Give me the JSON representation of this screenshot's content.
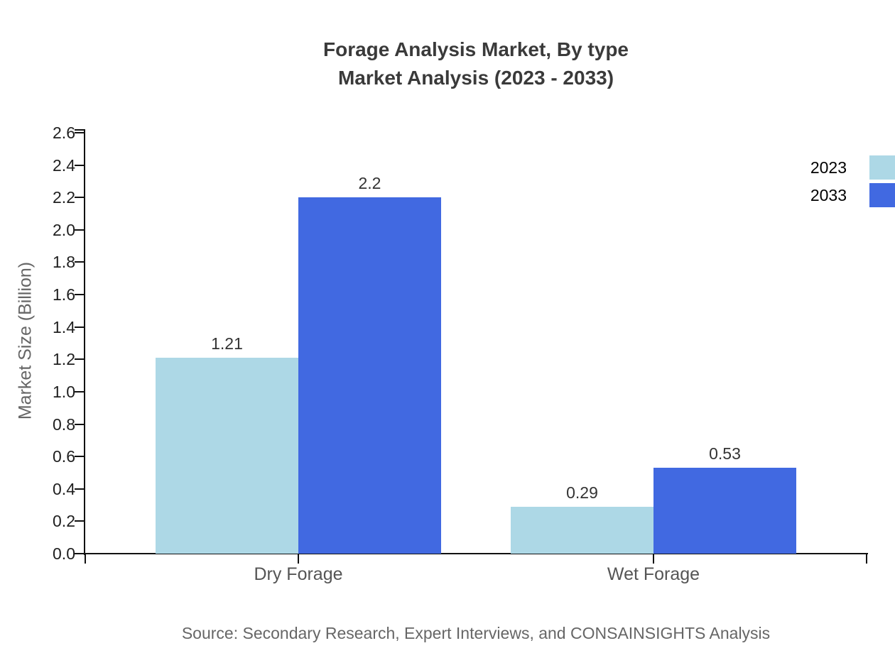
{
  "title": {
    "line1": "Forage Analysis Market, By type",
    "line2": "Market Analysis (2023 - 2033)"
  },
  "source": "Source: Secondary Research, Expert Interviews, and CONSAINSIGHTS Analysis",
  "chart_data": {
    "type": "bar",
    "title": "Forage Analysis Market, By type — Market Analysis (2023 - 2033)",
    "categories": [
      "Dry Forage",
      "Wet Forage"
    ],
    "series": [
      {
        "name": "2023",
        "color": "#ADD8E6",
        "values": [
          1.21,
          0.29
        ]
      },
      {
        "name": "2033",
        "color": "#4169E1",
        "values": [
          2.2,
          0.53
        ]
      }
    ],
    "value_labels": [
      [
        "1.21",
        "0.29"
      ],
      [
        "2.2",
        "0.53"
      ]
    ],
    "xlabel": "",
    "ylabel": "Market Size (Billion)",
    "ylim": [
      0,
      2.6
    ],
    "ytick_step": 0.2,
    "ytick_labels": [
      "0.0",
      "0.2",
      "0.4",
      "0.6",
      "0.8",
      "1.0",
      "1.2",
      "1.4",
      "1.6",
      "1.8",
      "2.0",
      "2.2",
      "2.4",
      "2.6"
    ],
    "grid": false,
    "legend_position": "top-right",
    "colors": {
      "series_2023": "#ADD8E6",
      "series_2033": "#4169E1",
      "axis": "#111111",
      "title_text": "#3a3a3a",
      "muted_text": "#666666"
    }
  }
}
